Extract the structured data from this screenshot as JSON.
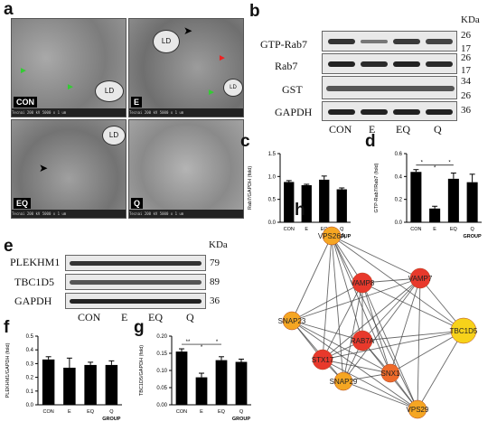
{
  "panels": {
    "a": "a",
    "b": "b",
    "c": "c",
    "d": "d",
    "e": "e",
    "f": "f",
    "g": "g",
    "h": "h"
  },
  "em_images": [
    {
      "tag": "CON",
      "ld": "LD",
      "info": "Tecnai  200 kV  5000 x   1 um"
    },
    {
      "tag": "E",
      "ld": "LD",
      "info": "Tecnai  200 kV  5000 x   1 um"
    },
    {
      "tag": "EQ",
      "ld": "LD",
      "info": "Tecnai  200 kV  5000 x   1 um"
    },
    {
      "tag": "Q",
      "ld": "",
      "info": "Tecnai  200 kV  5000 x   1 um"
    }
  ],
  "blot_b": {
    "kda_title": "KDa",
    "rows": [
      {
        "label": "GTP-Rab7",
        "kda": [
          "26",
          "17"
        ]
      },
      {
        "label": "Rab7",
        "kda": [
          "26",
          "17"
        ]
      },
      {
        "label": "GST",
        "kda": [
          "34",
          "26"
        ]
      },
      {
        "label": "GAPDH",
        "kda": [
          "36"
        ]
      }
    ],
    "lanes": [
      "CON",
      "E",
      "EQ",
      "Q"
    ]
  },
  "blot_e": {
    "kda_title": "KDa",
    "rows": [
      {
        "label": "PLEKHM1",
        "kda": [
          "79"
        ]
      },
      {
        "label": "TBC1D5",
        "kda": [
          "89"
        ]
      },
      {
        "label": "GAPDH",
        "kda": [
          "36"
        ]
      }
    ],
    "lanes": [
      "CON",
      "E",
      "EQ",
      "Q"
    ]
  },
  "chart_data": [
    {
      "panel": "c",
      "type": "bar",
      "categories": [
        "CON",
        "E",
        "EQ",
        "Q"
      ],
      "values": [
        0.88,
        0.81,
        0.93,
        0.72
      ],
      "errors": [
        0.03,
        0.02,
        0.08,
        0.03
      ],
      "ylabel": "Rab7/GAPDH (fold)",
      "xlabel": "GROUP",
      "ylim": [
        0,
        1.5
      ],
      "yticks": [
        "0.0",
        "0.5",
        "1.0",
        "1.5"
      ],
      "sig": []
    },
    {
      "panel": "d",
      "type": "bar",
      "categories": [
        "CON",
        "E",
        "EQ",
        "Q"
      ],
      "values": [
        0.44,
        0.12,
        0.38,
        0.35
      ],
      "errors": [
        0.02,
        0.02,
        0.05,
        0.07
      ],
      "ylabel": "GTP-Rab7/Rab7 (fold)",
      "xlabel": "GROUP",
      "ylim": [
        0,
        0.6
      ],
      "yticks": [
        "0.0",
        "0.2",
        "0.4",
        "0.6"
      ],
      "sig": [
        "*",
        "*",
        "*"
      ]
    },
    {
      "panel": "f",
      "type": "bar",
      "categories": [
        "CON",
        "E",
        "EQ",
        "Q"
      ],
      "values": [
        0.33,
        0.27,
        0.29,
        0.29
      ],
      "errors": [
        0.02,
        0.07,
        0.02,
        0.03
      ],
      "ylabel": "PLEKHM1/GAPDH (fold)",
      "xlabel": "GROUP",
      "ylim": [
        0,
        0.5
      ],
      "yticks": [
        "0.0",
        "0.1",
        "0.2",
        "0.3",
        "0.4",
        "0.5"
      ],
      "sig": []
    },
    {
      "panel": "g",
      "type": "bar",
      "categories": [
        "CON",
        "E",
        "EQ",
        "Q"
      ],
      "values": [
        0.155,
        0.08,
        0.13,
        0.125
      ],
      "errors": [
        0.008,
        0.012,
        0.01,
        0.008
      ],
      "ylabel": "TBC1D5/GAPDH (fold)",
      "xlabel": "GROUP",
      "ylim": [
        0,
        0.2
      ],
      "yticks": [
        "0.00",
        "0.05",
        "0.10",
        "0.15",
        "0.20"
      ],
      "sig": [
        "**",
        "*",
        "*"
      ]
    }
  ],
  "network": {
    "nodes": [
      {
        "id": "VPS26A",
        "color": "#f5a623"
      },
      {
        "id": "SNAP23",
        "color": "#f5a623"
      },
      {
        "id": "VAMP8",
        "color": "#e8392c"
      },
      {
        "id": "VAMP7",
        "color": "#e8392c"
      },
      {
        "id": "RAB7A",
        "color": "#e8392c"
      },
      {
        "id": "TBC1D5",
        "color": "#f7d21a"
      },
      {
        "id": "STX17",
        "color": "#e8392c"
      },
      {
        "id": "SNX1",
        "color": "#ee6a2a"
      },
      {
        "id": "SNAP29",
        "color": "#f5a623"
      },
      {
        "id": "VPS29",
        "color": "#f5a623"
      }
    ]
  }
}
